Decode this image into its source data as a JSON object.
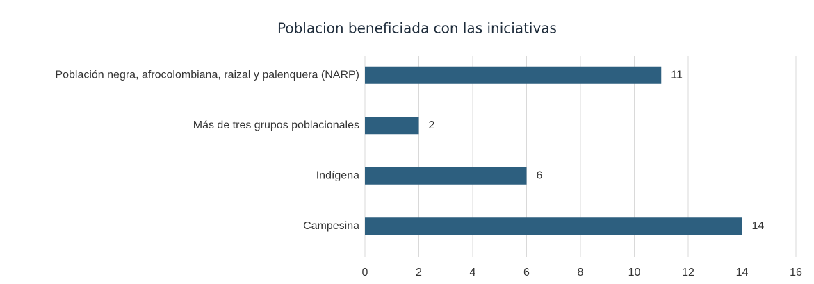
{
  "chart_data": {
    "type": "bar",
    "orientation": "horizontal",
    "title": "Poblacion beneficiada con las iniciativas",
    "categories": [
      "Población negra, afrocolombiana, raizal y palenquera (NARP)",
      "Más de tres grupos poblacionales",
      "Indígena",
      "Campesina"
    ],
    "values": [
      11,
      2,
      6,
      14
    ],
    "color": "#2d5f7f",
    "xlim": [
      0,
      16
    ],
    "xticks": [
      0,
      2,
      4,
      6,
      8,
      10,
      12,
      14,
      16
    ],
    "grid": true
  }
}
